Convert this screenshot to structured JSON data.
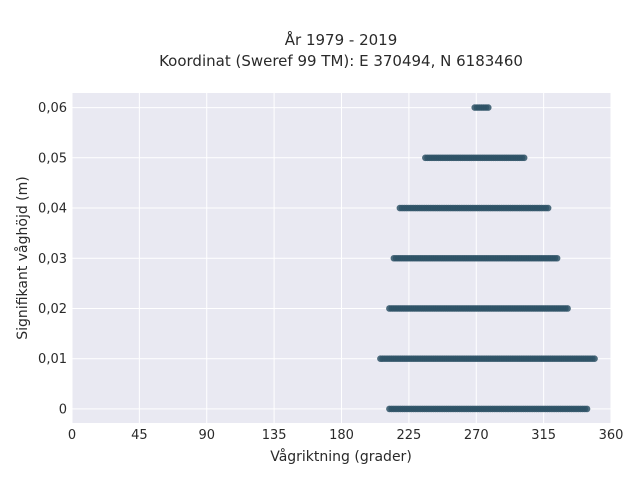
{
  "chart_data": {
    "type": "scatter",
    "title_line1": "År 1979 - 2019",
    "title_line2": "Koordinat (Sweref 99 TM): E 370494, N 6183460",
    "xlabel": "Vågriktning (grader)",
    "ylabel": "Signifikant våghöjd (m)",
    "xlim": [
      0,
      360
    ],
    "ylim": [
      -0.0028,
      0.0629
    ],
    "xticks": [
      0,
      45,
      90,
      135,
      180,
      225,
      270,
      315,
      360
    ],
    "xtick_labels": [
      "0",
      "45",
      "90",
      "135",
      "180",
      "225",
      "270",
      "315",
      "360"
    ],
    "yticks": [
      0,
      0.01,
      0.02,
      0.03,
      0.04,
      0.05,
      0.06
    ],
    "ytick_labels": [
      "0",
      "0,01",
      "0,02",
      "0,03",
      "0,04",
      "0,05",
      "0,06"
    ],
    "grid": true,
    "background": "#e9e9f2",
    "point_color": "#2e5266",
    "bands": [
      {
        "y": 0.0,
        "x_min": 212,
        "x_max": 344
      },
      {
        "y": 0.01,
        "x_min": 206,
        "x_max": 349
      },
      {
        "y": 0.02,
        "x_min": 212,
        "x_max": 331
      },
      {
        "y": 0.03,
        "x_min": 215,
        "x_max": 324
      },
      {
        "y": 0.04,
        "x_min": 219,
        "x_max": 318
      },
      {
        "y": 0.05,
        "x_min": 236,
        "x_max": 302
      },
      {
        "y": 0.06,
        "x_min": 269,
        "x_max": 278
      }
    ]
  }
}
